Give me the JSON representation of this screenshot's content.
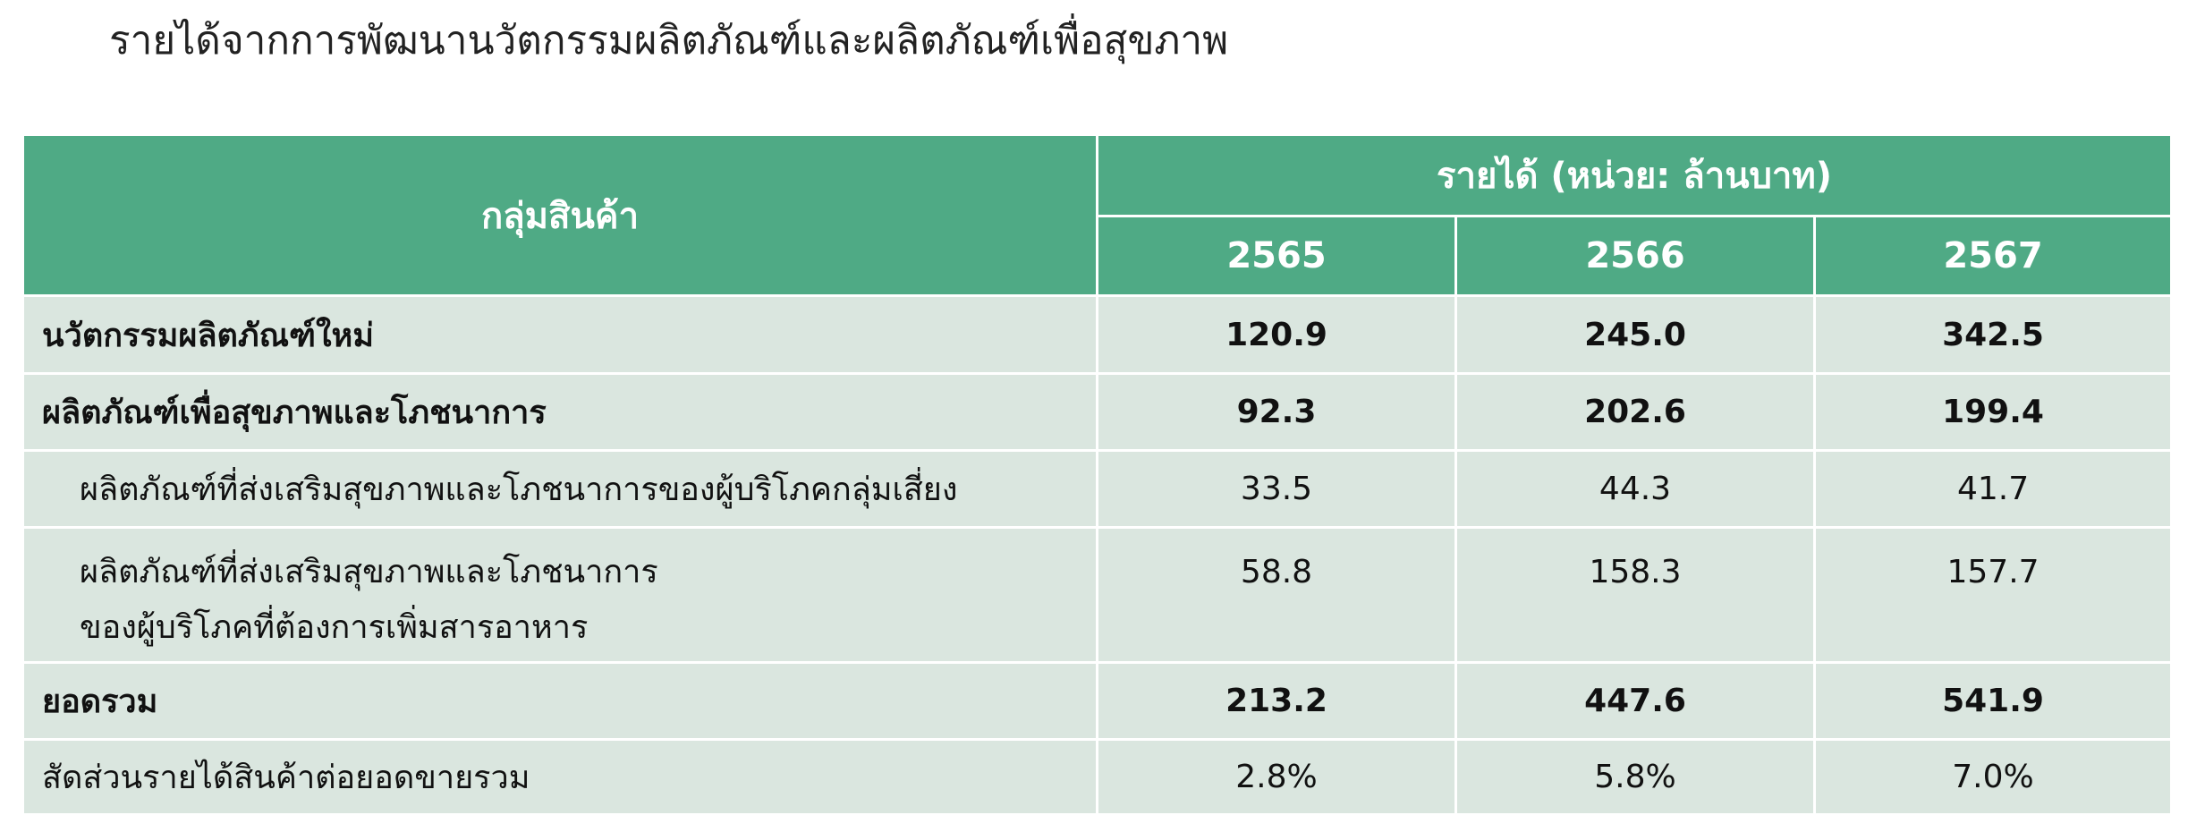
{
  "header": {
    "title": "รายได้จากการพัฒนานวัตกรรมผลิตภัณฑ์และผลิตภัณฑ์เพื่อสุขภาพ"
  },
  "table": {
    "group_header": "กลุ่มสินค้า",
    "revenue_header": "รายได้ (หน่วย: ล้านบาท)",
    "years": [
      "2565",
      "2566",
      "2567"
    ],
    "rows": [
      {
        "label": [
          "นวัตกรรมผลิตภัณฑ์ใหม่"
        ],
        "values": [
          "120.9",
          "245.0",
          "342.5"
        ]
      },
      {
        "label": [
          "ผลิตภัณฑ์เพื่อสุขภาพและโภชนาการ"
        ],
        "values": [
          "92.3",
          "202.6",
          "199.4"
        ]
      },
      {
        "label": [
          "ผลิตภัณฑ์ที่ส่งเสริมสุขภาพและโภชนาการของผู้บริโภคกลุ่มเสี่ยง"
        ],
        "values": [
          "33.5",
          "44.3",
          "41.7"
        ]
      },
      {
        "label": [
          "ผลิตภัณฑ์ที่ส่งเสริมสุขภาพและโภชนาการ",
          "ของผู้บริโภคที่ต้องการเพิ่มสารอาหาร"
        ],
        "values": [
          "58.8",
          "158.3",
          "157.7"
        ]
      },
      {
        "label": [
          "ยอดรวม"
        ],
        "values": [
          "213.2",
          "447.6",
          "541.9"
        ]
      },
      {
        "label": [
          "สัดส่วนรายได้สินค้าต่อยอดขายรวม"
        ],
        "values": [
          "2.8%",
          "5.8%",
          "7.0%"
        ]
      }
    ]
  }
}
